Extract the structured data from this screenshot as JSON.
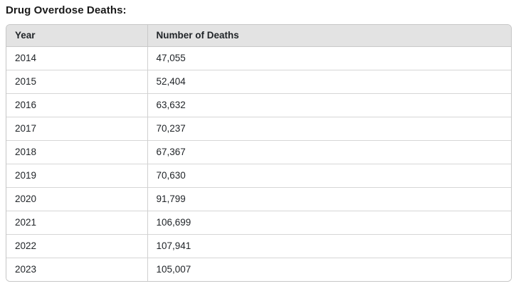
{
  "page": {
    "title": "Drug Overdose Deaths:"
  },
  "colors": {
    "header_bg": "#e3e3e3",
    "table_border": "#c6c6c6",
    "row_divider": "#d6d6d6",
    "text": "#212529"
  },
  "table": {
    "columns": [
      "Year",
      "Number of Deaths"
    ],
    "rows": [
      [
        "2014",
        "47,055"
      ],
      [
        "2015",
        "52,404"
      ],
      [
        "2016",
        "63,632"
      ],
      [
        "2017",
        "70,237"
      ],
      [
        "2018",
        "67,367"
      ],
      [
        "2019",
        "70,630"
      ],
      [
        "2020",
        "91,799"
      ],
      [
        "2021",
        "106,699"
      ],
      [
        "2022",
        "107,941"
      ],
      [
        "2023",
        "105,007"
      ]
    ]
  },
  "chart_data": {
    "type": "table",
    "title": "Drug Overdose Deaths:",
    "columns": [
      "Year",
      "Number of Deaths"
    ],
    "categories": [
      "2014",
      "2015",
      "2016",
      "2017",
      "2018",
      "2019",
      "2020",
      "2021",
      "2022",
      "2023"
    ],
    "values": [
      47055,
      52404,
      63632,
      70237,
      67367,
      70630,
      91799,
      106699,
      107941,
      105007
    ]
  }
}
